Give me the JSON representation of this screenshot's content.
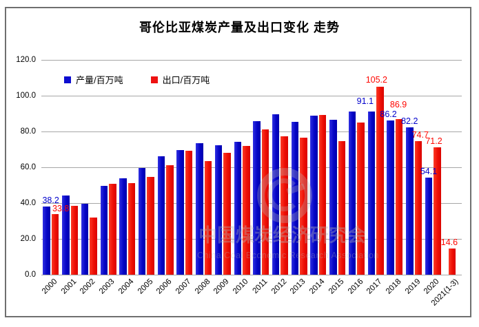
{
  "title": "哥伦比亚煤炭产量及出口变化 走势",
  "legend": {
    "items": [
      {
        "label": "产量/百万吨",
        "color": "#0a0acc"
      },
      {
        "label": "出口/百万吨",
        "color": "#ee1111"
      }
    ]
  },
  "watermark": {
    "cn": "中国煤炭经济研究会",
    "en": "China Coal Economic Research Association"
  },
  "y_axis": {
    "tick_labels": [
      "120.0",
      "100.0",
      "80.0",
      "60.0",
      "40.0",
      "20.0",
      "0.0"
    ]
  },
  "chart_data": {
    "type": "bar",
    "title": "哥伦比亚煤炭产量及出口变化 走势",
    "categories": [
      "2000",
      "2001",
      "2002",
      "2003",
      "2004",
      "2005",
      "2006",
      "2007",
      "2008",
      "2009",
      "2010",
      "2011",
      "2012",
      "2013",
      "2014",
      "2015",
      "2016",
      "2017",
      "2018",
      "2019",
      "2020",
      "2021(1-3)"
    ],
    "series": [
      {
        "name": "产量/百万吨",
        "key": "production",
        "color": "#0a0acc",
        "values": [
          38.2,
          44.1,
          39.6,
          49.7,
          53.8,
          59.5,
          66.0,
          69.5,
          73.3,
          72.4,
          74.2,
          85.9,
          89.5,
          85.5,
          88.7,
          86.5,
          91.0,
          91.1,
          86.2,
          82.2,
          54.1,
          null
        ],
        "data_labels": [
          "38.2",
          null,
          null,
          null,
          null,
          null,
          null,
          null,
          null,
          null,
          null,
          null,
          null,
          null,
          null,
          null,
          null,
          "91.1",
          "86.2",
          "82.2",
          "54.1",
          null
        ]
      },
      {
        "name": "出口/百万吨",
        "key": "export",
        "color": "#ee1111",
        "values": [
          33.8,
          38.5,
          32.0,
          50.9,
          51.3,
          54.5,
          61.2,
          69.1,
          63.5,
          68.2,
          71.8,
          81.0,
          77.2,
          76.5,
          89.3,
          74.6,
          84.9,
          105.2,
          86.9,
          74.7,
          71.2,
          14.6
        ],
        "data_labels": [
          "33.8",
          null,
          null,
          null,
          null,
          null,
          null,
          null,
          null,
          null,
          null,
          null,
          null,
          null,
          null,
          null,
          null,
          "105.2",
          "86.9",
          "74.7",
          "71.2",
          "14.6"
        ]
      }
    ],
    "ylim": [
      0,
      120
    ],
    "y_ticks": [
      120,
      100,
      80,
      60,
      40,
      20,
      0
    ],
    "grid": true,
    "legend_position": "top-left"
  }
}
